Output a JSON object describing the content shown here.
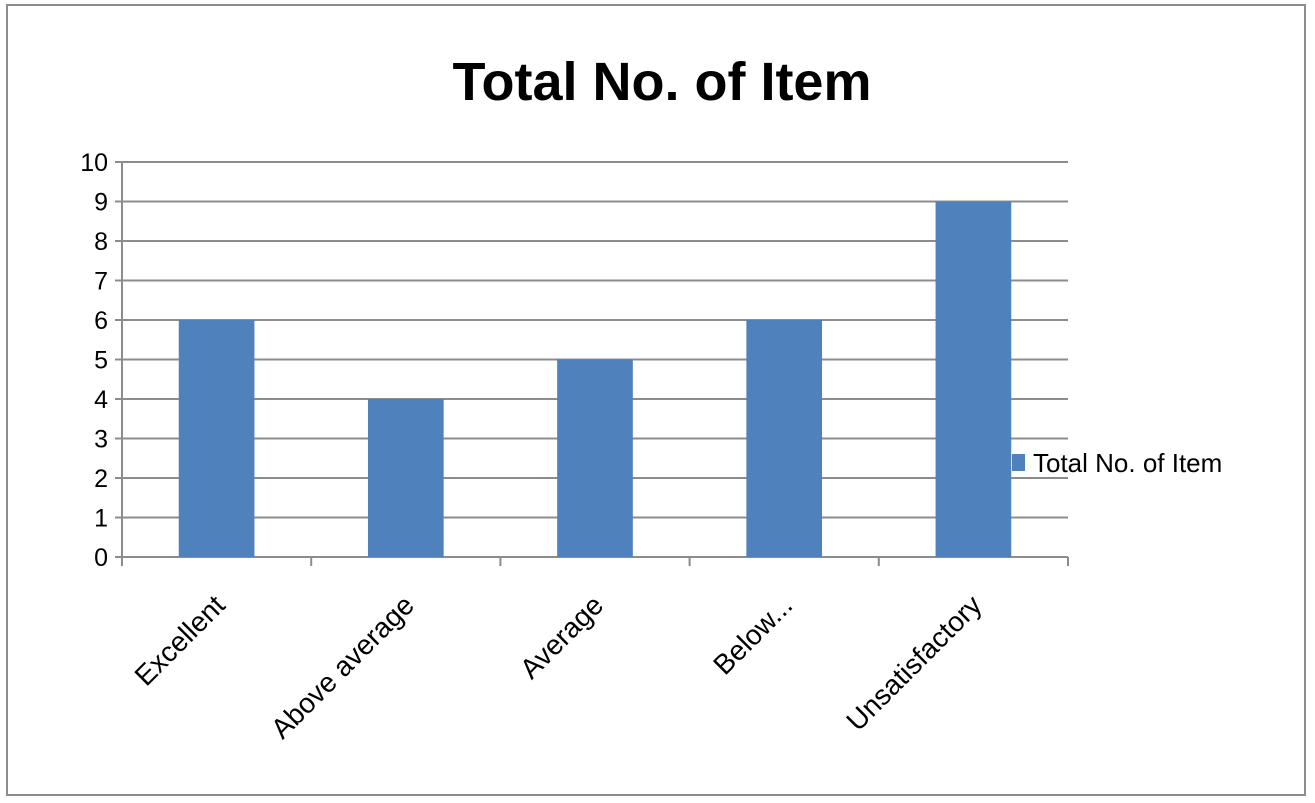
{
  "chart_data": {
    "type": "bar",
    "title": "Total No. of Item",
    "categories": [
      "Excellent",
      "Above average",
      "Average",
      "Below...",
      "Unsatisfactory"
    ],
    "series": [
      {
        "name": "Total No. of Item",
        "values": [
          6,
          4,
          5,
          6,
          9
        ],
        "color": "#4F81BD"
      }
    ],
    "xlabel": "",
    "ylabel": "",
    "ylim": [
      0,
      10
    ],
    "yticks": [
      0,
      1,
      2,
      3,
      4,
      5,
      6,
      7,
      8,
      9,
      10
    ],
    "grid": true,
    "legend": "right"
  }
}
